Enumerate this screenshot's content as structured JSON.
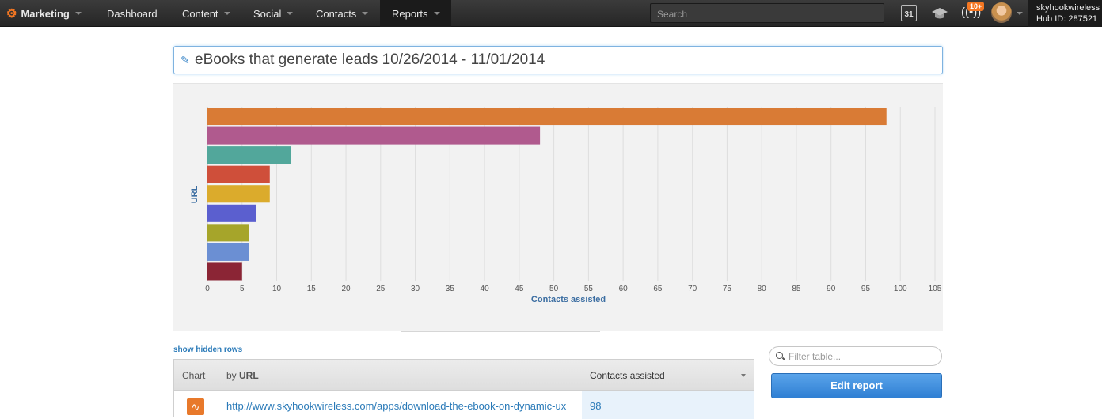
{
  "topnav": {
    "brand": "Marketing",
    "items": [
      "Dashboard",
      "Content",
      "Social",
      "Contacts",
      "Reports"
    ],
    "search_placeholder": "Search",
    "calendar_day": "31",
    "notif_badge": "10+",
    "account_name": "skyhookwireless",
    "hub_id": "Hub ID: 287521"
  },
  "report": {
    "title": "eBooks that generate leads 10/26/2014 - 11/01/2014",
    "show_hidden": "show hidden rows",
    "filter_placeholder": "Filter table...",
    "edit_button": "Edit report"
  },
  "chart_data": {
    "type": "bar",
    "orientation": "horizontal",
    "ylabel": "URL",
    "xlabel": "Contacts assisted",
    "xlim": [
      0,
      105
    ],
    "xticks": [
      0,
      5,
      10,
      15,
      20,
      25,
      30,
      35,
      40,
      45,
      50,
      55,
      60,
      65,
      70,
      75,
      80,
      85,
      90,
      95,
      100,
      105
    ],
    "values": [
      98,
      48,
      12,
      9,
      9,
      7,
      6,
      6,
      5
    ],
    "colors": [
      "#d97b35",
      "#b05a8e",
      "#52a79b",
      "#cf4f3a",
      "#dbab2c",
      "#5b5fcf",
      "#a6a52a",
      "#6b8fd3",
      "#8b2535"
    ],
    "grid": true
  },
  "table": {
    "headers": {
      "chart": "Chart",
      "by": "by ",
      "url": "URL",
      "contacts": "Contacts assisted"
    },
    "rows": [
      {
        "url": "http://www.skyhookwireless.com/apps/download-the-ebook-on-dynamic-ux",
        "value": "98"
      }
    ]
  }
}
